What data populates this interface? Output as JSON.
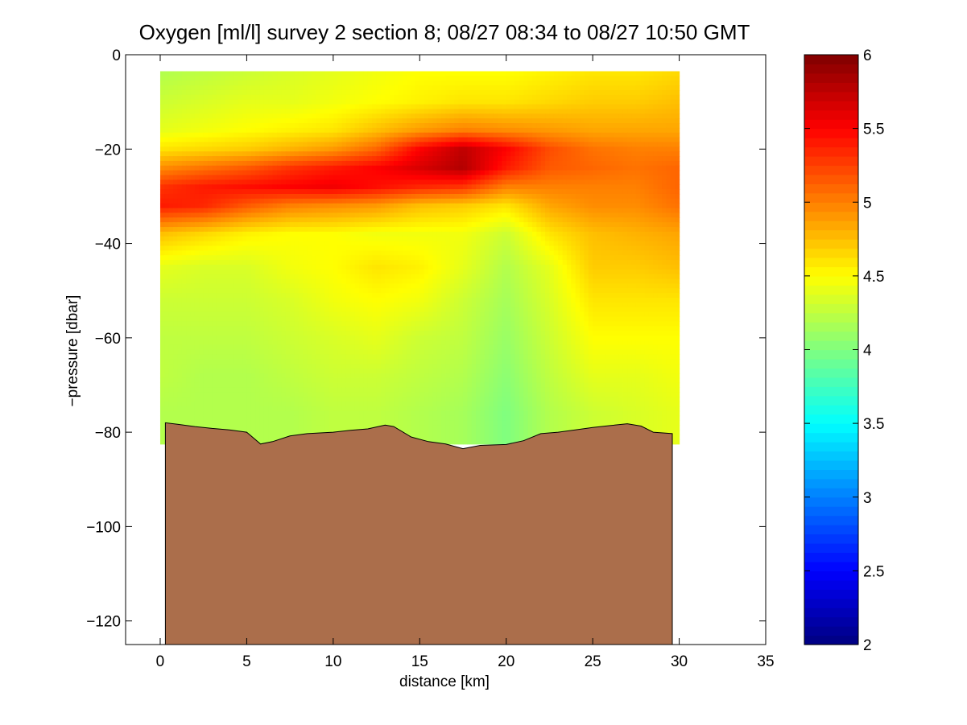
{
  "chart_data": {
    "type": "heatmap",
    "title": "Oxygen [ml/l] survey 2 section 8; 08/27 08:34 to 08/27 10:50 GMT",
    "xlabel": "distance [km]",
    "ylabel": "−pressure [dbar]",
    "xlim": [
      -2,
      35
    ],
    "ylim": [
      -125,
      0
    ],
    "xticks": [
      0,
      5,
      10,
      15,
      20,
      25,
      30,
      35
    ],
    "xtick_labels": [
      "0",
      "5",
      "10",
      "15",
      "20",
      "25",
      "30",
      "35"
    ],
    "yticks": [
      0,
      -20,
      -40,
      -60,
      -80,
      -100,
      -120
    ],
    "ytick_labels": [
      "0",
      "−20",
      "−40",
      "−60",
      "−80",
      "−100",
      "−120"
    ],
    "colorbar": {
      "range": [
        2,
        6
      ],
      "ticks": [
        2,
        2.5,
        3,
        3.5,
        4,
        4.5,
        5,
        5.5,
        6
      ],
      "tick_labels": [
        "2",
        "2.5",
        "3",
        "3.5",
        "4",
        "4.5",
        "5",
        "5.5",
        "6"
      ],
      "colormap": "jet"
    },
    "profile_x": [
      0,
      2.5,
      5,
      7.5,
      10,
      12.5,
      15,
      17.5,
      20,
      22.5,
      25,
      27.5,
      29.8
    ],
    "depth_y": [
      -4,
      -10,
      -16,
      -20,
      -24,
      -28,
      -32,
      -38,
      -45,
      -52,
      -60,
      -68,
      -76
    ],
    "values": [
      [
        4.2,
        4.25,
        4.3,
        4.35,
        4.4,
        4.45,
        4.5,
        4.5,
        4.5,
        4.55,
        4.6,
        4.6,
        4.65
      ],
      [
        4.3,
        4.35,
        4.4,
        4.4,
        4.45,
        4.5,
        4.55,
        4.6,
        4.6,
        4.65,
        4.7,
        4.7,
        4.75
      ],
      [
        4.4,
        4.45,
        4.5,
        4.55,
        4.6,
        4.75,
        4.9,
        5.0,
        4.95,
        4.9,
        4.85,
        4.85,
        4.85
      ],
      [
        4.6,
        4.65,
        4.7,
        4.8,
        4.9,
        5.1,
        5.5,
        5.75,
        5.5,
        5.2,
        5.05,
        5.0,
        5.0
      ],
      [
        4.95,
        5.05,
        5.15,
        5.3,
        5.4,
        5.5,
        5.65,
        5.8,
        5.4,
        5.15,
        5.1,
        5.05,
        5.1
      ],
      [
        5.3,
        5.4,
        5.45,
        5.5,
        5.55,
        5.45,
        5.35,
        5.3,
        5.0,
        5.0,
        5.0,
        5.0,
        5.1
      ],
      [
        5.4,
        5.35,
        5.15,
        5.0,
        4.95,
        4.9,
        4.75,
        4.7,
        4.6,
        4.85,
        4.95,
        4.95,
        5.05
      ],
      [
        4.75,
        4.65,
        4.55,
        4.5,
        4.5,
        4.45,
        4.45,
        4.45,
        4.3,
        4.6,
        4.75,
        4.8,
        4.85
      ],
      [
        4.4,
        4.35,
        4.35,
        4.45,
        4.5,
        4.6,
        4.55,
        4.4,
        4.2,
        4.4,
        4.7,
        4.7,
        4.75
      ],
      [
        4.3,
        4.3,
        4.3,
        4.35,
        4.45,
        4.5,
        4.45,
        4.3,
        4.15,
        4.35,
        4.6,
        4.6,
        4.6
      ],
      [
        4.25,
        4.25,
        4.25,
        4.3,
        4.35,
        4.4,
        4.3,
        4.25,
        4.1,
        4.3,
        4.5,
        4.5,
        4.5
      ],
      [
        4.25,
        4.2,
        4.2,
        4.25,
        4.3,
        4.3,
        4.25,
        4.2,
        4.05,
        4.25,
        4.4,
        4.4,
        4.45
      ],
      [
        4.2,
        4.2,
        4.2,
        4.2,
        4.25,
        4.25,
        4.2,
        4.15,
        4.0,
        4.2,
        4.3,
        4.35,
        4.4
      ]
    ],
    "bottom": {
      "x": [
        0.3,
        1,
        2,
        3,
        4,
        5,
        5.8,
        6.5,
        7.5,
        8.5,
        10,
        11,
        12,
        13,
        13.5,
        14.5,
        15.5,
        16.5,
        17.5,
        18.5,
        20,
        21,
        22,
        23,
        24,
        25,
        26,
        27,
        27.8,
        28.5,
        29.6
      ],
      "depth": [
        -78,
        -78.3,
        -78.8,
        -79.2,
        -79.5,
        -80,
        -82.5,
        -82,
        -80.8,
        -80.3,
        -80,
        -79.6,
        -79.3,
        -78.5,
        -78.8,
        -81,
        -82,
        -82.5,
        -83.5,
        -82.8,
        -82.6,
        -81.8,
        -80.3,
        -80,
        -79.5,
        -79,
        -78.6,
        -78.2,
        -78.7,
        -80,
        -80.3
      ]
    },
    "colors": {
      "bottom_fill": "#ab6e4b",
      "background": "#ffffff"
    }
  }
}
